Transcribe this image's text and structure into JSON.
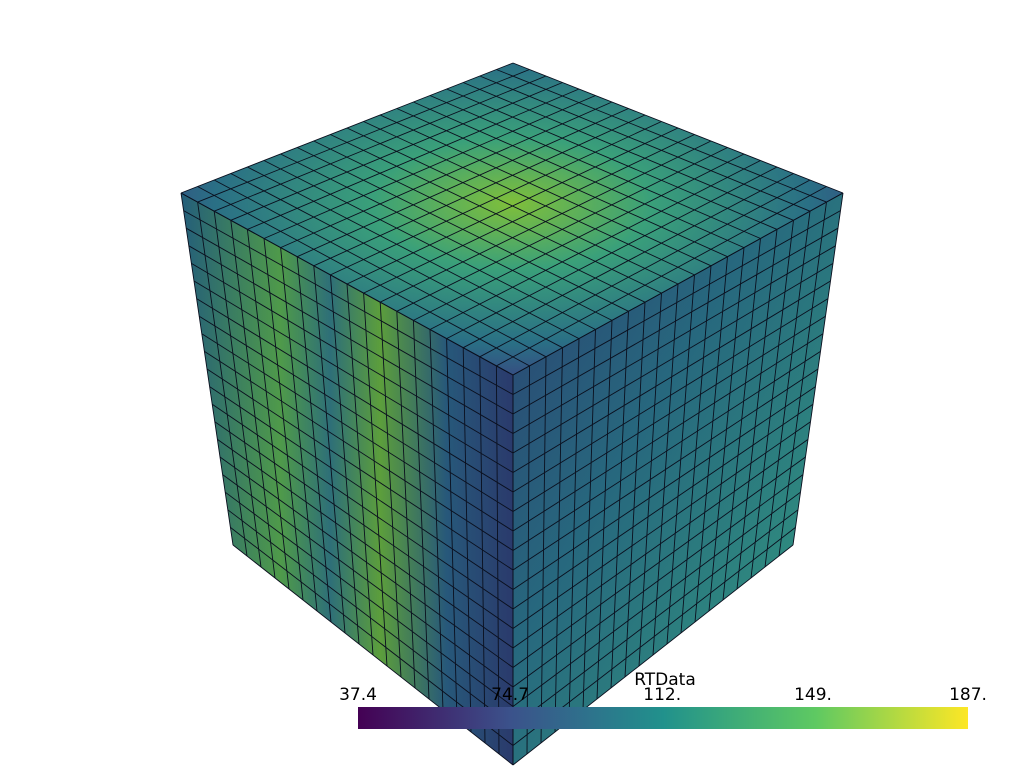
{
  "scalar_bar": {
    "title": "RTData",
    "range": [
      37.4,
      187
    ],
    "ticks": [
      37.4,
      74.7,
      {
        "value": 112,
        "label": "112."
      },
      {
        "value": 149,
        "label": "149."
      },
      {
        "value": 187,
        "label": "187."
      }
    ]
  }
}
